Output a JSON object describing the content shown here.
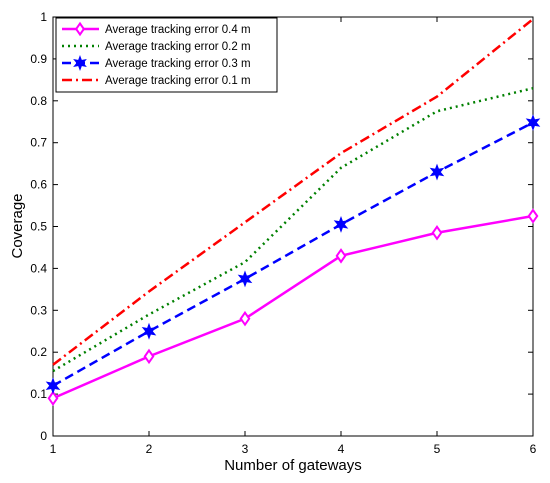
{
  "chart_data": {
    "type": "line",
    "xlabel": "Number of gateways",
    "ylabel": "Coverage",
    "xlim": [
      1,
      6
    ],
    "ylim": [
      0,
      1
    ],
    "x": [
      1,
      2,
      3,
      4,
      5,
      6
    ],
    "xticks": [
      "1",
      "2",
      "3",
      "4",
      "5",
      "6"
    ],
    "yticks": [
      "0",
      "0.1",
      "0.2",
      "0.3",
      "0.4",
      "0.5",
      "0.6",
      "0.7",
      "0.8",
      "0.9",
      "1"
    ],
    "grid": false,
    "legend_position": "top-left",
    "series": [
      {
        "name": "Average tracking error 0.4 m",
        "values": [
          0.09,
          0.19,
          0.28,
          0.43,
          0.485,
          0.525
        ],
        "color": "#ff00ff",
        "line": "solid",
        "marker": "diamond"
      },
      {
        "name": "Average tracking error 0.2 m",
        "values": [
          0.155,
          0.29,
          0.415,
          0.64,
          0.775,
          0.83
        ],
        "color": "#008000",
        "line": "dotted",
        "marker": "none"
      },
      {
        "name": "Average tracking error 0.3 m",
        "values": [
          0.12,
          0.25,
          0.375,
          0.505,
          0.63,
          0.748
        ],
        "color": "#0000ff",
        "line": "dashed",
        "marker": "star"
      },
      {
        "name": "Average tracking error 0.1 m",
        "values": [
          0.17,
          0.345,
          0.51,
          0.675,
          0.81,
          0.995
        ],
        "color": "#ff0000",
        "line": "dashdot",
        "marker": "none"
      }
    ]
  }
}
